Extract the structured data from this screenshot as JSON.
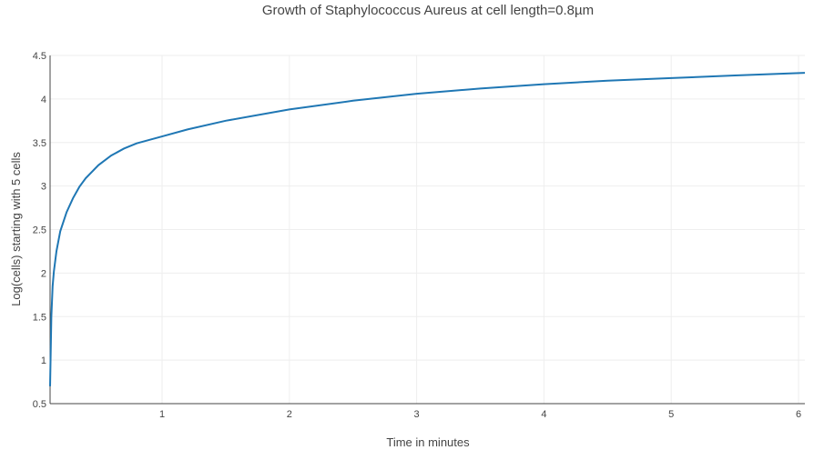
{
  "chart_data": {
    "type": "line",
    "title": "Growth of Staphylococcus Aureus at cell length=0.8µm",
    "xlabel": "Time in minutes",
    "ylabel": "Log(cells) starting with 5 cells",
    "xlim": [
      0.12,
      6.05
    ],
    "ylim": [
      0.5,
      4.5
    ],
    "x_ticks": [
      1,
      2,
      3,
      4,
      5,
      6
    ],
    "x_tick_labels": [
      "1",
      "2",
      "3",
      "4",
      "5",
      "6"
    ],
    "y_ticks": [
      0.5,
      1,
      1.5,
      2,
      2.5,
      3,
      3.5,
      4,
      4.5
    ],
    "y_tick_labels": [
      "0.5",
      "1",
      "1.5",
      "2",
      "2.5",
      "3",
      "3.5",
      "4",
      "4.5"
    ],
    "grid": true,
    "legend": "none",
    "series": [
      {
        "color": "#1f77b4",
        "x": [
          0.12,
          0.13,
          0.14,
          0.15,
          0.17,
          0.2,
          0.25,
          0.3,
          0.35,
          0.4,
          0.5,
          0.6,
          0.7,
          0.8,
          1.0,
          1.2,
          1.5,
          2.0,
          2.5,
          3.0,
          3.5,
          4.0,
          4.5,
          5.0,
          5.5,
          6.05
        ],
        "values": [
          0.7,
          1.5,
          1.85,
          2.02,
          2.25,
          2.48,
          2.7,
          2.86,
          2.99,
          3.09,
          3.24,
          3.35,
          3.43,
          3.49,
          3.57,
          3.65,
          3.75,
          3.88,
          3.98,
          4.06,
          4.12,
          4.17,
          4.21,
          4.24,
          4.27,
          4.3
        ]
      }
    ]
  }
}
